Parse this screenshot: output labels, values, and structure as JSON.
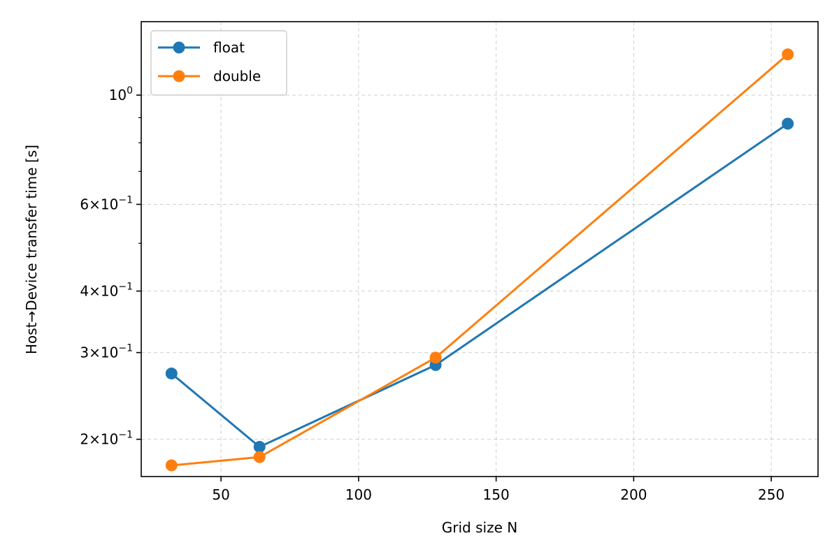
{
  "chart_data": {
    "type": "line",
    "title": "",
    "xlabel": "Grid size N",
    "ylabel": "Host→Device transfer time [s]",
    "x": [
      32,
      64,
      128,
      256
    ],
    "series": [
      {
        "name": "float",
        "color": "#1f77b4",
        "values": [
          0.272,
          0.193,
          0.283,
          0.875
        ]
      },
      {
        "name": "double",
        "color": "#ff7f0e",
        "values": [
          0.177,
          0.184,
          0.293,
          1.21
        ]
      }
    ],
    "xlim": [
      21,
      267
    ],
    "ylim": [
      0.168,
      1.41
    ],
    "yscale": "log",
    "x_ticks": [
      {
        "value": 50,
        "label": "50"
      },
      {
        "value": 100,
        "label": "100"
      },
      {
        "value": 150,
        "label": "150"
      },
      {
        "value": 200,
        "label": "200"
      },
      {
        "value": 250,
        "label": "250"
      }
    ],
    "y_ticks": [
      {
        "value": 0.2,
        "coef": "2",
        "exp": "−1"
      },
      {
        "value": 0.3,
        "coef": "3",
        "exp": "−1"
      },
      {
        "value": 0.4,
        "coef": "4",
        "exp": "−1"
      },
      {
        "value": 0.6,
        "coef": "6",
        "exp": "−1"
      },
      {
        "value": 1.0,
        "coef": "10",
        "exp": "0"
      }
    ],
    "y_minor_ticks": [
      0.5,
      0.7,
      0.8,
      0.9
    ],
    "grid": true,
    "grid_style": "dashed",
    "legend_position": "top-left",
    "marker": "circle"
  }
}
